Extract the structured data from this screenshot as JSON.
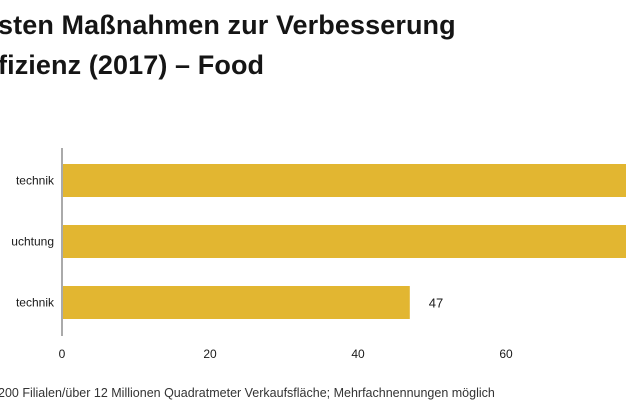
{
  "heading": {
    "line1": "sten Maßnahmen zur Verbesserung",
    "line2": "fizienz (2017) – Food"
  },
  "footnote": "200 Filialen/über 12 Millionen Quadratmeter Verkaufsfläche; Mehrfachnennungen möglich",
  "colors": {
    "bar": "#e2b631",
    "axis": "#555555",
    "text": "#1a1a1a"
  },
  "chart_data": {
    "type": "bar",
    "orientation": "horizontal",
    "categories": [
      "technik",
      "uchtung",
      "technik"
    ],
    "values": [
      null,
      null,
      47
    ],
    "value_labels": [
      "",
      "",
      "47"
    ],
    "xlim": [
      0,
      80
    ],
    "xticks": [
      0,
      20,
      40,
      60
    ],
    "xtick_labels": [
      "0",
      "20",
      "40",
      "60"
    ],
    "grid": false,
    "legend": "none"
  }
}
